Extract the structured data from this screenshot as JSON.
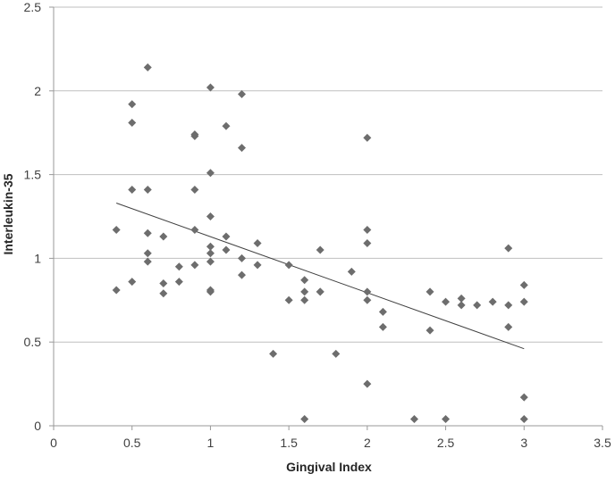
{
  "chart_data": {
    "type": "scatter",
    "title": "",
    "xlabel": "Gingival Index",
    "ylabel": "Interleukin-35",
    "xlim": [
      0,
      3.5
    ],
    "ylim": [
      0,
      2.5
    ],
    "x_ticks": [
      0,
      0.5,
      1,
      1.5,
      2,
      2.5,
      3,
      3.5
    ],
    "x_tick_labels": [
      "0",
      "0.5",
      "1",
      "1.5",
      "2",
      "2.5",
      "3",
      "3.5"
    ],
    "y_ticks": [
      0,
      0.5,
      1,
      1.5,
      2,
      2.5
    ],
    "y_tick_labels": [
      "0",
      "0.5",
      "1",
      "1.5",
      "2",
      "2.5"
    ],
    "grid": "horizontal",
    "legend": "none",
    "marker": "diamond",
    "marker_color": "#6d6d6d",
    "trendline_color": "#404040",
    "gridline_color": "#bfbfbf",
    "series": [
      {
        "points": [
          {
            "x": 0.4,
            "y": 1.17
          },
          {
            "x": 0.4,
            "y": 0.81
          },
          {
            "x": 0.5,
            "y": 1.92
          },
          {
            "x": 0.5,
            "y": 1.81
          },
          {
            "x": 0.5,
            "y": 1.41
          },
          {
            "x": 0.5,
            "y": 0.86
          },
          {
            "x": 0.6,
            "y": 2.14
          },
          {
            "x": 0.6,
            "y": 1.41
          },
          {
            "x": 0.6,
            "y": 1.15
          },
          {
            "x": 0.6,
            "y": 1.03
          },
          {
            "x": 0.6,
            "y": 0.98
          },
          {
            "x": 0.7,
            "y": 1.13
          },
          {
            "x": 0.7,
            "y": 0.85
          },
          {
            "x": 0.7,
            "y": 0.79
          },
          {
            "x": 0.8,
            "y": 0.95
          },
          {
            "x": 0.8,
            "y": 0.86
          },
          {
            "x": 0.9,
            "y": 1.74
          },
          {
            "x": 0.9,
            "y": 1.73
          },
          {
            "x": 0.9,
            "y": 1.41
          },
          {
            "x": 0.9,
            "y": 1.17
          },
          {
            "x": 0.9,
            "y": 0.96
          },
          {
            "x": 1.0,
            "y": 2.02
          },
          {
            "x": 1.0,
            "y": 1.51
          },
          {
            "x": 1.0,
            "y": 1.25
          },
          {
            "x": 1.0,
            "y": 1.07
          },
          {
            "x": 1.0,
            "y": 1.03
          },
          {
            "x": 1.0,
            "y": 0.98
          },
          {
            "x": 1.0,
            "y": 0.81
          },
          {
            "x": 1.0,
            "y": 0.8
          },
          {
            "x": 1.1,
            "y": 1.79
          },
          {
            "x": 1.1,
            "y": 1.13
          },
          {
            "x": 1.1,
            "y": 1.05
          },
          {
            "x": 1.2,
            "y": 1.98
          },
          {
            "x": 1.2,
            "y": 1.66
          },
          {
            "x": 1.2,
            "y": 1.0
          },
          {
            "x": 1.2,
            "y": 0.9
          },
          {
            "x": 1.3,
            "y": 1.09
          },
          {
            "x": 1.3,
            "y": 0.96
          },
          {
            "x": 1.4,
            "y": 0.43
          },
          {
            "x": 1.5,
            "y": 0.96
          },
          {
            "x": 1.5,
            "y": 0.75
          },
          {
            "x": 1.6,
            "y": 0.87
          },
          {
            "x": 1.6,
            "y": 0.8
          },
          {
            "x": 1.6,
            "y": 0.75
          },
          {
            "x": 1.6,
            "y": 0.04
          },
          {
            "x": 1.7,
            "y": 1.05
          },
          {
            "x": 1.7,
            "y": 0.8
          },
          {
            "x": 1.7,
            "y": 0.8
          },
          {
            "x": 1.8,
            "y": 0.43
          },
          {
            "x": 1.9,
            "y": 0.92
          },
          {
            "x": 2.0,
            "y": 1.72
          },
          {
            "x": 2.0,
            "y": 1.17
          },
          {
            "x": 2.0,
            "y": 1.09
          },
          {
            "x": 2.0,
            "y": 0.8
          },
          {
            "x": 2.0,
            "y": 0.75
          },
          {
            "x": 2.0,
            "y": 0.25
          },
          {
            "x": 2.1,
            "y": 0.68
          },
          {
            "x": 2.1,
            "y": 0.59
          },
          {
            "x": 2.3,
            "y": 0.04
          },
          {
            "x": 2.4,
            "y": 0.8
          },
          {
            "x": 2.4,
            "y": 0.57
          },
          {
            "x": 2.5,
            "y": 0.74
          },
          {
            "x": 2.5,
            "y": 0.04
          },
          {
            "x": 2.6,
            "y": 0.76
          },
          {
            "x": 2.6,
            "y": 0.72
          },
          {
            "x": 2.7,
            "y": 0.72
          },
          {
            "x": 2.8,
            "y": 0.74
          },
          {
            "x": 2.9,
            "y": 1.06
          },
          {
            "x": 2.9,
            "y": 0.72
          },
          {
            "x": 2.9,
            "y": 0.59
          },
          {
            "x": 3.0,
            "y": 0.84
          },
          {
            "x": 3.0,
            "y": 0.74
          },
          {
            "x": 3.0,
            "y": 0.17
          },
          {
            "x": 3.0,
            "y": 0.04
          }
        ]
      }
    ],
    "trendline": {
      "type": "linear",
      "x": [
        0.4,
        3.0
      ],
      "y": [
        1.33,
        0.46
      ]
    }
  }
}
